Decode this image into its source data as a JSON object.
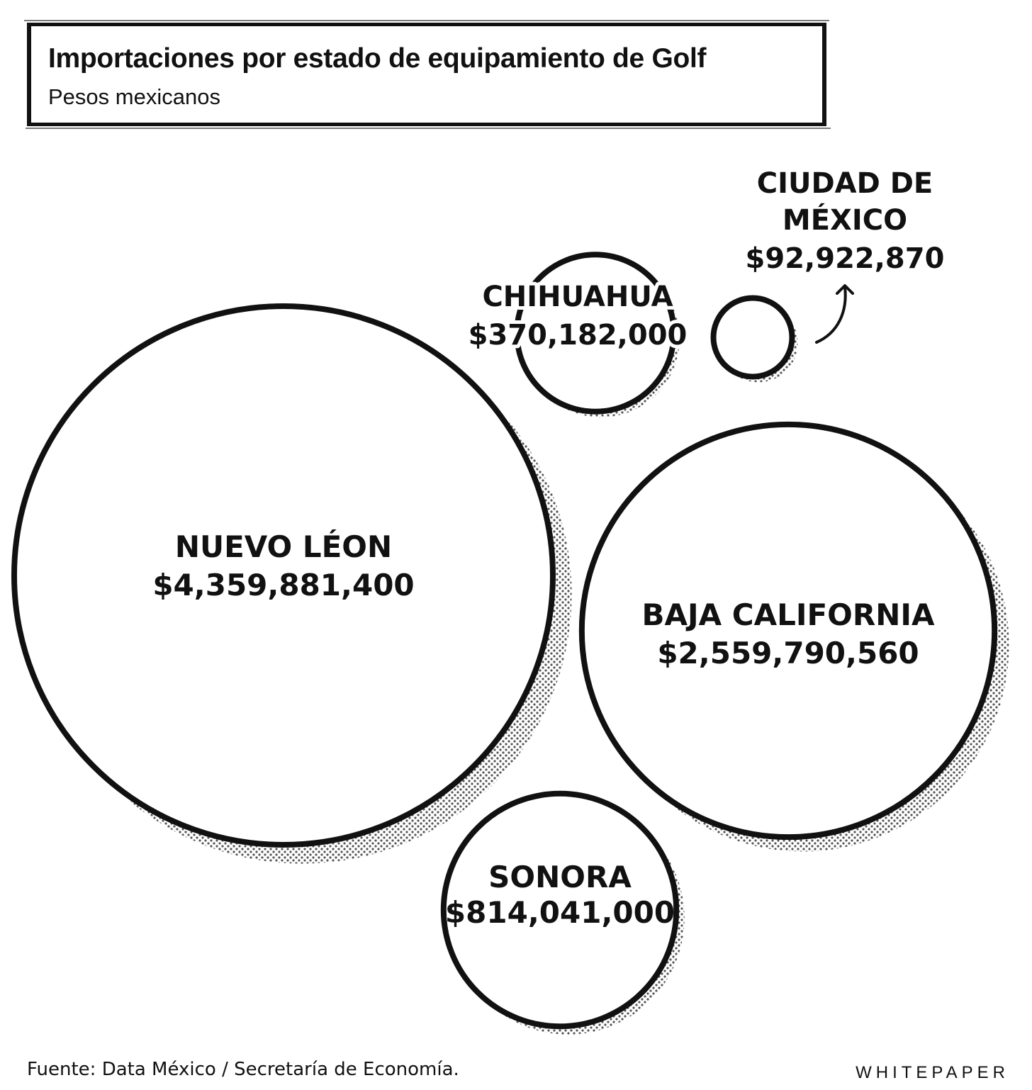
{
  "header": {
    "title": "Importaciones por estado de equipamiento de Golf",
    "subtitle": "Pesos mexicanos"
  },
  "chart_data": {
    "type": "bubble",
    "title": "Importaciones por estado de equipamiento de Golf",
    "subtitle": "Pesos mexicanos",
    "series": [
      {
        "name": "NUEVO LÉON",
        "label": "$4,359,881,400",
        "value": 4359881400
      },
      {
        "name": "BAJA CALIFORNIA",
        "label": "$2,559,790,560",
        "value": 2559790560
      },
      {
        "name": "SONORA",
        "label": "$814,041,000",
        "value": 814041000
      },
      {
        "name": "CHIHUAHUA",
        "label": "$370,182,000",
        "value": 370182000
      },
      {
        "name": "CIUDAD DE MÉXICO",
        "label": "$92,922,870",
        "value": 92922870
      }
    ],
    "colors": {
      "stroke": "#111111",
      "fill": "#ffffff",
      "shadow": "#555555"
    }
  },
  "labels": {
    "cdmx_line1": "CIUDAD DE",
    "cdmx_line2": "MÉXICO"
  },
  "footer": {
    "source": "Fuente: Data México / Secretaría de Economía.",
    "brand": "WHITEPAPER"
  }
}
